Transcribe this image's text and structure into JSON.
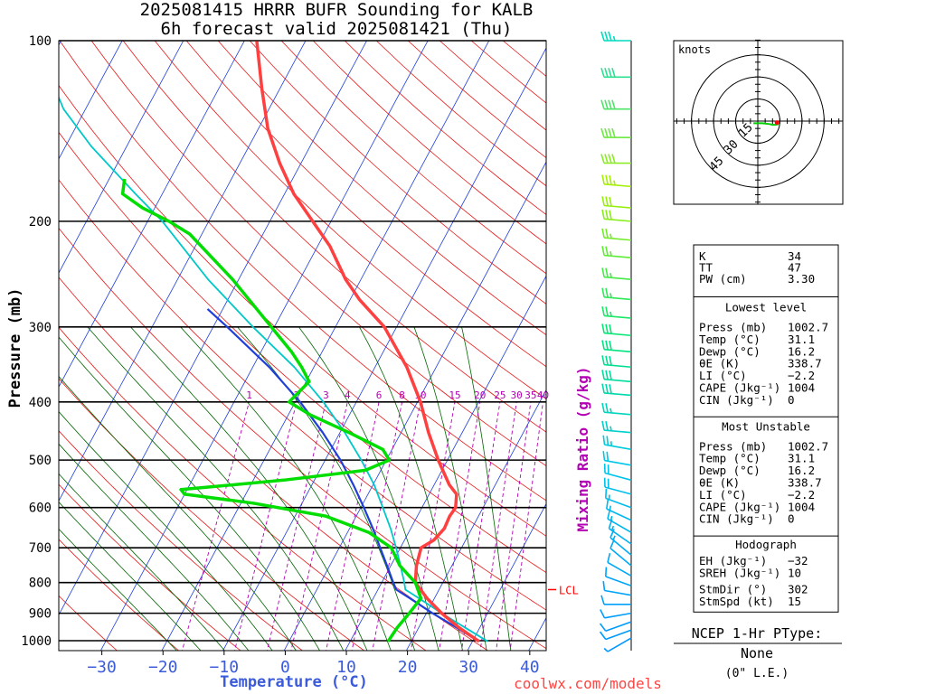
{
  "header": {
    "line1": "2025081415 HRRR BUFR Sounding for KALB",
    "line2": "6h forecast valid 2025081421 (Thu)"
  },
  "credit": "coolwx.com/models",
  "colors": {
    "temperature": "#ff4040",
    "dewpoint": "#00dd00",
    "virtual_temp_profile": "#00c8c8",
    "parcel": "#1f3fd8",
    "isotherm": "#1f3fd8",
    "dry_adiabat": "#e81818",
    "moist_adiabat": "#006400",
    "mixing_ratio": "#b400b4",
    "lcl": "#ff0000"
  },
  "chart_data": {
    "type": "line",
    "title": "2025081415 HRRR BUFR Sounding for KALB 6h forecast valid 2025081421 (Thu)",
    "xlabel": "Temperature (°C)",
    "ylabel": "Pressure (mb)",
    "xlim": [
      -38,
      42
    ],
    "ylim": [
      1030,
      100
    ],
    "y_scale": "log",
    "skew": "skew-T",
    "x_ticks": [
      "−30",
      "−20",
      "−10",
      "0",
      "10",
      "20",
      "30",
      "40"
    ],
    "x_tick_values": [
      -30,
      -20,
      -10,
      0,
      10,
      20,
      30,
      40
    ],
    "y_ticks": [
      100,
      200,
      300,
      400,
      500,
      600,
      700,
      800,
      900,
      1000
    ],
    "mixing_ratio_label": "Mixing Ratio (g/kg)",
    "mixing_ratio_values": [
      "1",
      "2",
      "3",
      "4",
      "6",
      "8",
      "10",
      "15",
      "20",
      "25",
      "30",
      "35",
      "40"
    ],
    "lcl_label": "LCL",
    "lcl_pressure": 822,
    "series": [
      {
        "name": "Temperature",
        "p": [
          1002.7,
          950,
          900,
          850,
          800,
          750,
          700,
          680,
          650,
          620,
          600,
          570,
          550,
          500,
          450,
          400,
          350,
          300,
          270,
          250,
          220,
          200,
          180,
          160,
          140,
          120,
          100
        ],
        "t": [
          31.1,
          26.5,
          22.5,
          18.8,
          15.5,
          14.2,
          13.4,
          14.8,
          15.5,
          15.3,
          15.5,
          14.5,
          12.5,
          8.5,
          4.5,
          0.5,
          -4.8,
          -12,
          -18.5,
          -22.5,
          -28,
          -33,
          -38.5,
          -43.5,
          -48.5,
          -53,
          -58
        ]
      },
      {
        "name": "Dewpoint",
        "p": [
          1002.7,
          950,
          900,
          850,
          800,
          750,
          700,
          660,
          620,
          590,
          570,
          560,
          540,
          520,
          500,
          480,
          450,
          420,
          400,
          370,
          350,
          330,
          300,
          250,
          210,
          200,
          190,
          180,
          170
        ],
        "t": [
          16.2,
          16.5,
          17.2,
          17.8,
          15.5,
          11.5,
          8.5,
          3.5,
          -5,
          -18,
          -30,
          -31,
          -15,
          -2.5,
          0.5,
          -1.5,
          -8.5,
          -16.5,
          -21,
          -19.5,
          -22,
          -25,
          -30.5,
          -41,
          -52,
          -56.5,
          -62,
          -66.5,
          -67.5
        ]
      },
      {
        "name": "Parcel",
        "p": [
          1002.7,
          950,
          900,
          850,
          822,
          800,
          750,
          700,
          650,
          600,
          550,
          500,
          450,
          400,
          350,
          300,
          280
        ],
        "t": [
          31.1,
          26.1,
          21.0,
          16.0,
          13.0,
          11.9,
          9.4,
          6.7,
          3.8,
          0.5,
          -3.2,
          -7.5,
          -12.8,
          -19.2,
          -27.3,
          -37.7,
          -42.5
        ]
      },
      {
        "name": "Virtual Temp Profile",
        "p": [
          1002.7,
          950,
          900,
          850,
          822,
          800,
          750,
          700,
          650,
          600,
          550,
          500,
          450,
          400,
          350,
          300,
          250,
          200,
          180,
          150,
          130,
          115,
          108
        ],
        "t": [
          32.5,
          27.5,
          22.5,
          17.5,
          14.5,
          13.7,
          11.6,
          9.3,
          6.7,
          3.6,
          0.2,
          -4.1,
          -9.2,
          -15.4,
          -23.2,
          -33.5,
          -45,
          -57.6,
          -64.4,
          -75.8,
          -83.6,
          -88.6,
          -90.8
        ]
      }
    ]
  },
  "wind_profile": {
    "pressures": [
      100,
      115,
      130,
      145,
      160,
      175,
      190,
      200,
      215,
      230,
      250,
      270,
      290,
      310,
      330,
      350,
      370,
      390,
      420,
      450,
      480,
      510,
      540,
      570,
      600,
      630,
      660,
      690,
      720,
      750,
      780,
      810,
      840,
      870,
      900,
      930,
      960,
      990
    ],
    "speeds_kt": [
      35,
      40,
      40,
      40,
      40,
      35,
      30,
      30,
      25,
      25,
      25,
      25,
      25,
      30,
      30,
      30,
      30,
      30,
      25,
      25,
      25,
      20,
      20,
      20,
      15,
      15,
      15,
      15,
      15,
      10,
      10,
      10,
      10,
      10,
      10,
      10,
      10,
      5
    ],
    "directions_deg": [
      270,
      270,
      270,
      270,
      270,
      275,
      275,
      275,
      275,
      275,
      275,
      275,
      275,
      275,
      275,
      275,
      275,
      275,
      275,
      275,
      280,
      280,
      285,
      285,
      290,
      295,
      300,
      305,
      310,
      310,
      300,
      290,
      280,
      270,
      260,
      250,
      250,
      240
    ]
  },
  "hodograph": {
    "unit_label": "knots",
    "ring_labels": [
      "15",
      "30",
      "45"
    ],
    "points_kt": [
      [
        -3,
        1.5
      ],
      [
        3,
        1.5
      ],
      [
        8,
        2
      ],
      [
        10,
        2.5
      ],
      [
        12,
        2.5
      ],
      [
        14,
        2
      ],
      [
        13,
        1
      ]
    ]
  },
  "indices": {
    "top": [
      {
        "label": "K",
        "value": "34"
      },
      {
        "label": "TT",
        "value": "47"
      },
      {
        "label": "PW (cm)",
        "value": "3.30"
      }
    ],
    "lowest_level": {
      "title": "Lowest level",
      "rows": [
        {
          "label": "Press (mb)",
          "value": "1002.7"
        },
        {
          "label": "Temp (°C)",
          "value": "31.1"
        },
        {
          "label": "Dewp (°C)",
          "value": "16.2"
        },
        {
          "label": "θE (K)",
          "value": "338.7"
        },
        {
          "label": "LI (°C)",
          "value": "−2.2"
        },
        {
          "label": "CAPE (Jkg⁻¹)",
          "value": "1004"
        },
        {
          "label": "CIN (Jkg⁻¹)",
          "value": "0"
        }
      ]
    },
    "most_unstable": {
      "title": "Most Unstable",
      "rows": [
        {
          "label": "Press (mb)",
          "value": "1002.7"
        },
        {
          "label": "Temp (°C)",
          "value": "31.1"
        },
        {
          "label": "Dewp (°C)",
          "value": "16.2"
        },
        {
          "label": "θE (K)",
          "value": "338.7"
        },
        {
          "label": "LI (°C)",
          "value": "−2.2"
        },
        {
          "label": "CAPE (Jkg⁻¹)",
          "value": "1004"
        },
        {
          "label": "CIN (Jkg⁻¹)",
          "value": "0"
        }
      ]
    },
    "hodograph_params": {
      "title": "Hodograph",
      "rows": [
        {
          "label": "EH (Jkg⁻¹)",
          "value": "−32"
        },
        {
          "label": "SREH (Jkg⁻¹)",
          "value": "10"
        },
        {
          "label": "StmDir (°)",
          "value": "302"
        },
        {
          "label": "StmSpd (kt)",
          "value": "15"
        }
      ]
    }
  },
  "ptype": {
    "title": "NCEP 1-Hr PType:",
    "value": "None",
    "detail": "(0\" L.E.)"
  }
}
